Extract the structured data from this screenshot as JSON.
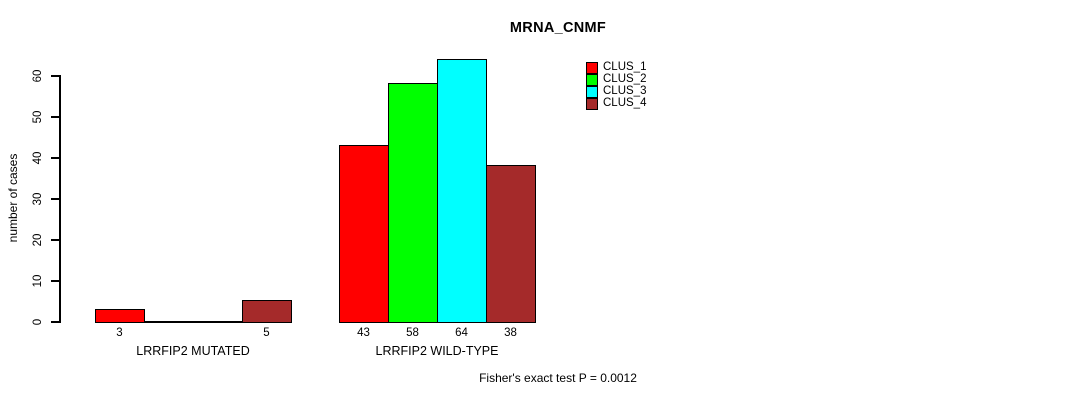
{
  "chart_data": {
    "type": "bar",
    "title": "MRNA_CNMF",
    "ylabel": "number of cases",
    "xlabel": "",
    "categories": [
      "LRRFIP2 MUTATED",
      "LRRFIP2 WILD-TYPE"
    ],
    "series": [
      {
        "name": "CLUS_1",
        "color": "#ff0000",
        "values": [
          3,
          43
        ]
      },
      {
        "name": "CLUS_2",
        "color": "#00ff00",
        "values": [
          0,
          58
        ]
      },
      {
        "name": "CLUS_3",
        "color": "#00ffff",
        "values": [
          0,
          64
        ]
      },
      {
        "name": "CLUS_4",
        "color": "#a52a2a",
        "values": [
          5,
          38
        ]
      }
    ],
    "bar_value_labels_visible": [
      3,
      5,
      43,
      58,
      64,
      38
    ],
    "yticks": [
      0,
      10,
      20,
      30,
      40,
      50,
      60
    ],
    "ylim": [
      0,
      64
    ],
    "grid": false,
    "legend": {
      "position": "top-right",
      "entries": [
        "CLUS_1",
        "CLUS_2",
        "CLUS_3",
        "CLUS_4"
      ]
    },
    "annotation": "Fisher's exact test P = 0.0012"
  },
  "colors": {
    "background": "#ffffff",
    "axis": "#000000",
    "text": "#000000"
  }
}
